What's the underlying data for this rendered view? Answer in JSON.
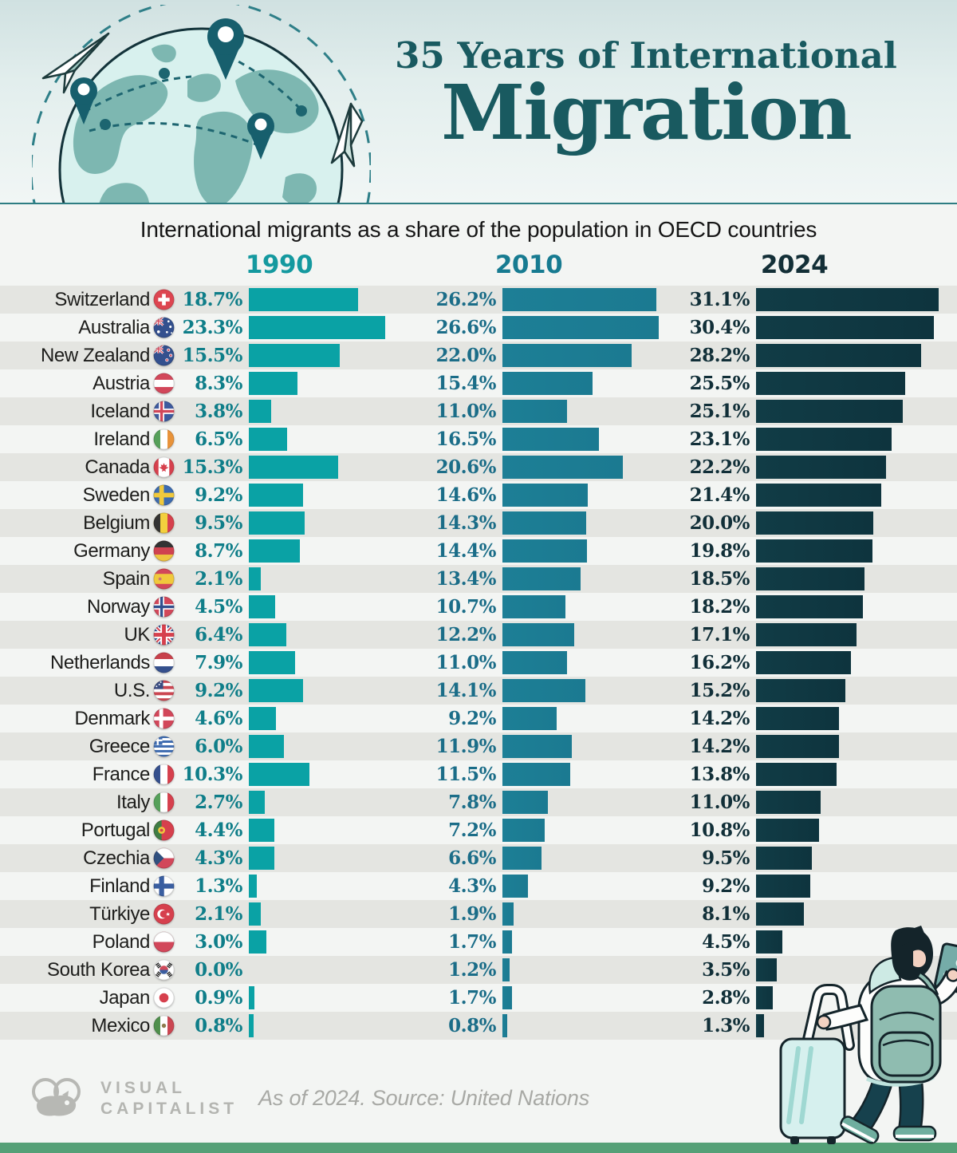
{
  "header": {
    "title_line1": "35 Years of International",
    "title_line2": "Migration",
    "subtitle": "International migrants as a share of the population in OECD countries"
  },
  "chart_data": {
    "type": "bar",
    "title": "International migrants as a share of the population in OECD countries",
    "unit": "%",
    "columns": [
      "1990",
      "2010",
      "2024"
    ],
    "xlim": [
      0,
      31.1
    ],
    "rows": [
      {
        "country": "Switzerland",
        "flag": "switzerland",
        "values": [
          18.7,
          26.2,
          31.1
        ]
      },
      {
        "country": "Australia",
        "flag": "australia",
        "values": [
          23.3,
          26.6,
          30.4
        ]
      },
      {
        "country": "New Zealand",
        "flag": "newzealand",
        "values": [
          15.5,
          22.0,
          28.2
        ]
      },
      {
        "country": "Austria",
        "flag": "austria",
        "values": [
          8.3,
          15.4,
          25.5
        ]
      },
      {
        "country": "Iceland",
        "flag": "iceland",
        "values": [
          3.8,
          11.0,
          25.1
        ]
      },
      {
        "country": "Ireland",
        "flag": "ireland",
        "values": [
          6.5,
          16.5,
          23.1
        ]
      },
      {
        "country": "Canada",
        "flag": "canada",
        "values": [
          15.3,
          20.6,
          22.2
        ]
      },
      {
        "country": "Sweden",
        "flag": "sweden",
        "values": [
          9.2,
          14.6,
          21.4
        ]
      },
      {
        "country": "Belgium",
        "flag": "belgium",
        "values": [
          9.5,
          14.3,
          20.0
        ]
      },
      {
        "country": "Germany",
        "flag": "germany",
        "values": [
          8.7,
          14.4,
          19.8
        ]
      },
      {
        "country": "Spain",
        "flag": "spain",
        "values": [
          2.1,
          13.4,
          18.5
        ]
      },
      {
        "country": "Norway",
        "flag": "norway",
        "values": [
          4.5,
          10.7,
          18.2
        ]
      },
      {
        "country": "UK",
        "flag": "uk",
        "values": [
          6.4,
          12.2,
          17.1
        ]
      },
      {
        "country": "Netherlands",
        "flag": "netherlands",
        "values": [
          7.9,
          11.0,
          16.2
        ]
      },
      {
        "country": "U.S.",
        "flag": "us",
        "values": [
          9.2,
          14.1,
          15.2
        ]
      },
      {
        "country": "Denmark",
        "flag": "denmark",
        "values": [
          4.6,
          9.2,
          14.2
        ]
      },
      {
        "country": "Greece",
        "flag": "greece",
        "values": [
          6.0,
          11.9,
          14.2
        ]
      },
      {
        "country": "France",
        "flag": "france",
        "values": [
          10.3,
          11.5,
          13.8
        ]
      },
      {
        "country": "Italy",
        "flag": "italy",
        "values": [
          2.7,
          7.8,
          11.0
        ]
      },
      {
        "country": "Portugal",
        "flag": "portugal",
        "values": [
          4.4,
          7.2,
          10.8
        ]
      },
      {
        "country": "Czechia",
        "flag": "czechia",
        "values": [
          4.3,
          6.6,
          9.5
        ]
      },
      {
        "country": "Finland",
        "flag": "finland",
        "values": [
          1.3,
          4.3,
          9.2
        ]
      },
      {
        "country": "Türkiye",
        "flag": "turkiye",
        "values": [
          2.1,
          1.9,
          8.1
        ]
      },
      {
        "country": "Poland",
        "flag": "poland",
        "values": [
          3.0,
          1.7,
          4.5
        ]
      },
      {
        "country": "South Korea",
        "flag": "southkorea",
        "values": [
          0.0,
          1.2,
          3.5
        ]
      },
      {
        "country": "Japan",
        "flag": "japan",
        "values": [
          0.9,
          1.7,
          2.8
        ]
      },
      {
        "country": "Mexico",
        "flag": "mexico",
        "values": [
          0.8,
          0.8,
          1.3
        ]
      }
    ]
  },
  "footer": {
    "brand_line1": "VISUAL",
    "brand_line2": "CAPITALIST",
    "note": "As of 2024. Source: United Nations"
  },
  "colors": {
    "bar_1990": "#0aa2a5",
    "bar_2010": "#1d7f96",
    "bar_2024": "#113c46",
    "value_1990": "#0f7e89",
    "value_2010": "#1b6d88",
    "value_2024": "#112f38",
    "year_1990": "#14999f",
    "year_2010": "#177b91",
    "year_2024": "#132f37",
    "stripe": "#e4e5e1",
    "bottom_bar": "#55a077"
  }
}
